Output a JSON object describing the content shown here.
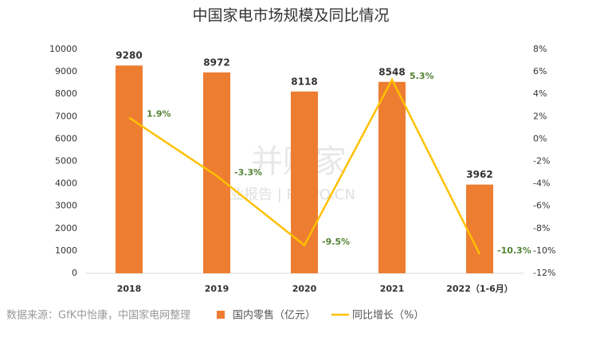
{
  "chart_data": {
    "type": "bar-line",
    "title": "中国家电市场规模及同比情况",
    "source": "数据来源：GfK中怡康，中国家电网整理",
    "watermark": [
      "并购家",
      "行业报告 | POIPO.CN"
    ],
    "categories": [
      "2018",
      "2019",
      "2020",
      "2021",
      "2022（1-6月）"
    ],
    "series": [
      {
        "name": "国内零售（亿元）",
        "color": "#ED7D31",
        "type": "bar",
        "values": [
          9280,
          8972,
          8118,
          8548,
          3962
        ]
      },
      {
        "name": "同比增长（%）",
        "color": "#FFC000",
        "type": "line",
        "axis": "y2",
        "values": [
          1.9,
          -3.3,
          -9.5,
          5.3,
          -10.3
        ],
        "value_labels": [
          "1.9%",
          "-3.3%",
          "-9.5%",
          "5.3%",
          "-10.3%"
        ],
        "label_color": "#548235"
      }
    ],
    "ylim": [
      0,
      10000
    ],
    "yticks": [
      0,
      1000,
      2000,
      3000,
      4000,
      5000,
      6000,
      7000,
      8000,
      9000,
      10000
    ],
    "y2lim": [
      -12,
      8
    ],
    "y2ticks": [
      {
        "value": -12,
        "label": "-12%"
      },
      {
        "value": -10,
        "label": "-10%"
      },
      {
        "value": -8,
        "label": "-8%"
      },
      {
        "value": -6,
        "label": "-6%"
      },
      {
        "value": -4,
        "label": "-4%"
      },
      {
        "value": -2,
        "label": "-2%"
      },
      {
        "value": 0,
        "label": "0%"
      },
      {
        "value": 2,
        "label": "2%"
      },
      {
        "value": 4,
        "label": "4%"
      },
      {
        "value": 6,
        "label": "6%"
      },
      {
        "value": 8,
        "label": "8%"
      }
    ],
    "grid": false,
    "legend": "bottom"
  }
}
